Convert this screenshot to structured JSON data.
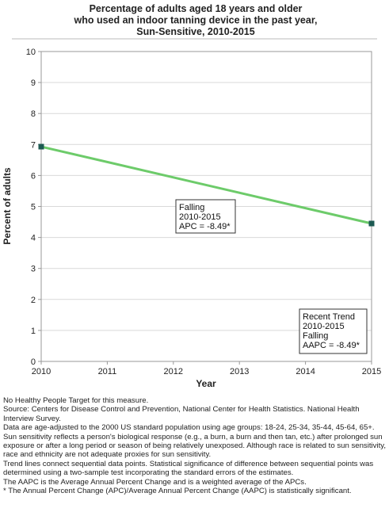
{
  "chart_data": {
    "type": "line",
    "title": [
      "Percentage of adults aged 18 years and older",
      "who used an indoor tanning device in the past year,",
      "Sun-Sensitive,  2010-2015"
    ],
    "xlabel": "Year",
    "ylabel": "Percent of adults",
    "xlim": [
      2010,
      2015
    ],
    "ylim": [
      0,
      10
    ],
    "xticks": [
      "2010",
      "2011",
      "2012",
      "2013",
      "2014",
      "2015"
    ],
    "yticks": [
      "0",
      "1",
      "2",
      "3",
      "4",
      "5",
      "6",
      "7",
      "8",
      "9",
      "10"
    ],
    "grid": "horizontal",
    "series": [
      {
        "name": "",
        "color": "#6dcb6a",
        "x": [
          2010,
          2015
        ],
        "y": [
          6.93,
          4.45
        ]
      }
    ],
    "points": [
      {
        "x": 2010,
        "y": 6.93,
        "color": "#1d5a52"
      },
      {
        "x": 2015,
        "y": 4.45,
        "color": "#1d5a52"
      }
    ],
    "annotations": [
      {
        "lines": [
          "Falling",
          "2010-2015",
          "APC = -8.49*"
        ]
      },
      {
        "lines": [
          "Recent Trend",
          "2010-2015",
          "Falling",
          "AAPC = -8.49*"
        ]
      }
    ]
  },
  "footnotes": [
    "No Healthy People Target for this measure.",
    "Source: Centers for Disease Control and Prevention, National Center for Health Statistics. National Health Interview Survey.",
    "Data are age-adjusted to the 2000 US standard population using age groups: 18-24, 25-34, 35-44, 45-64, 65+.",
    "Sun sensitivity reflects a person's biological response (e.g., a burn, a burn and then tan, etc.) after prolonged sun exposure or after a long period or season of being relatively unexposed. Although race is related to sun sensitivity, race and ethnicity are not adequate proxies for sun sensitivity.",
    "Trend lines connect sequential data points. Statistical significance of difference between sequential points was determined using a two-sample test incorporating the standard errors of the estimates.",
    "The AAPC is the Average Annual Percent Change and is a weighted average of the APCs.",
    "* The Annual Percent Change (APC)/Average Annual Percent Change (AAPC) is statistically significant."
  ]
}
